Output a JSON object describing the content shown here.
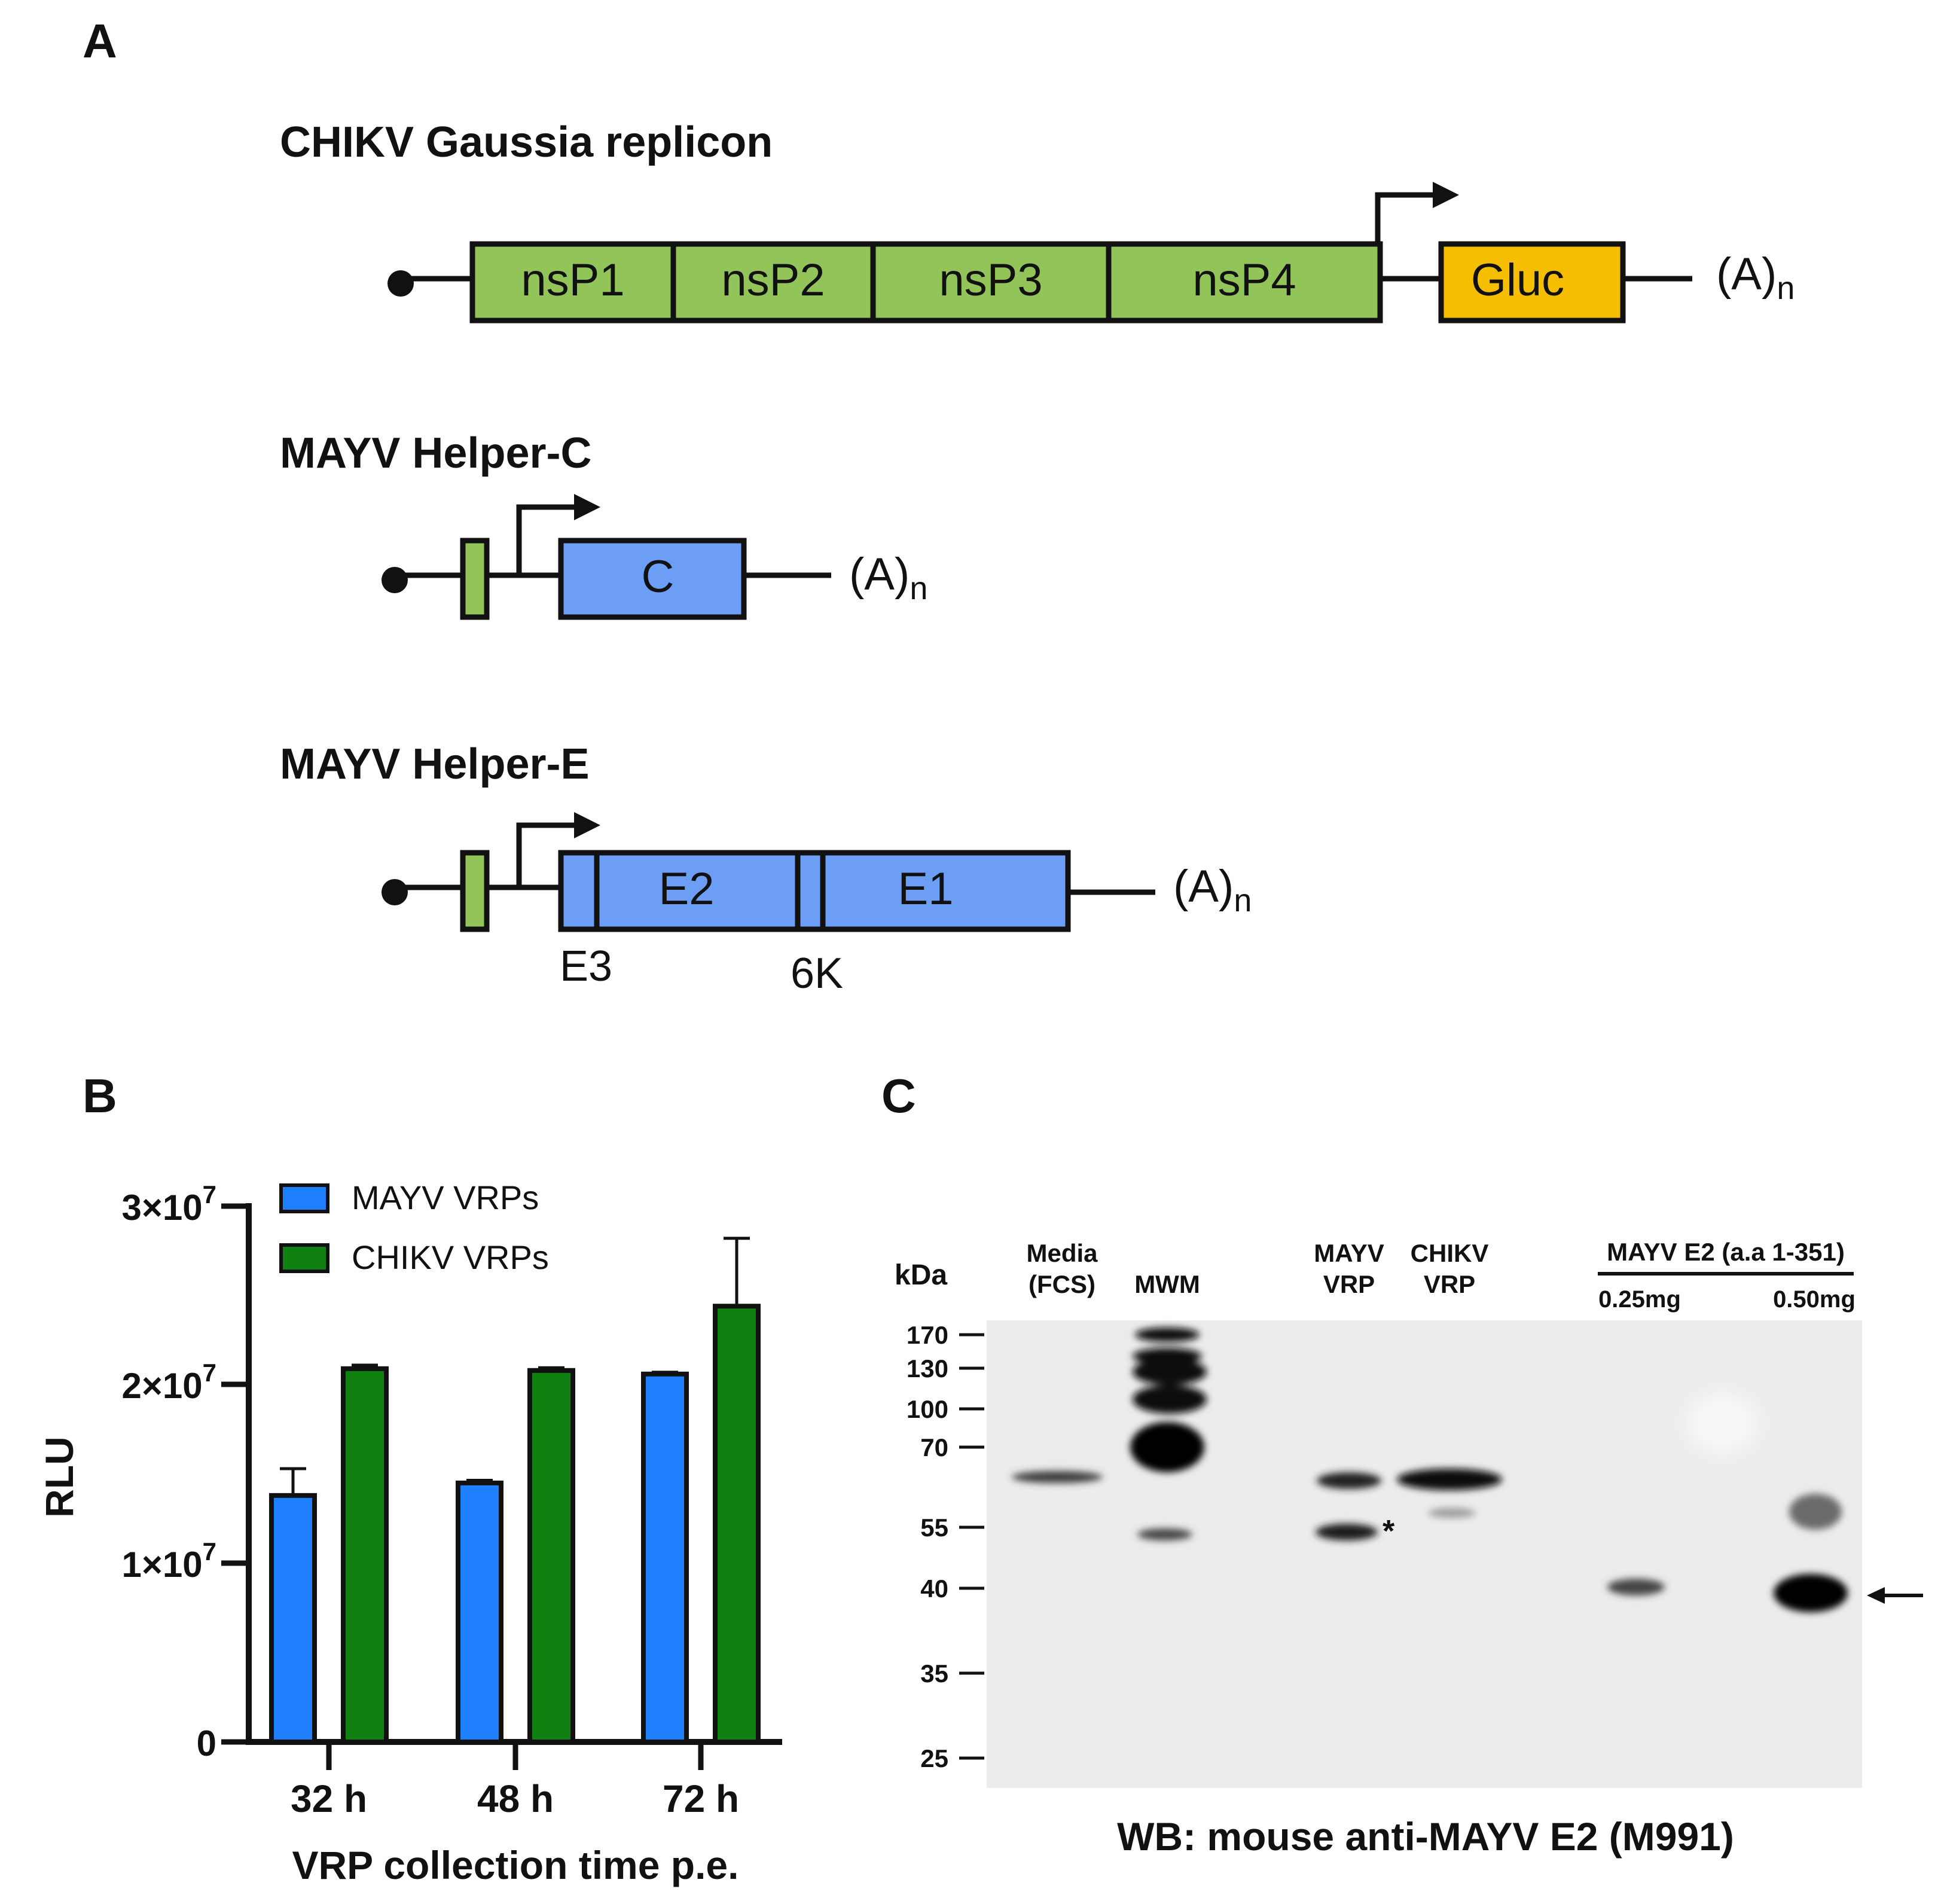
{
  "panel_a": {
    "label": "A",
    "constructs": [
      {
        "title": "CHIKV Gaussia replicon",
        "segments": [
          "nsP1",
          "nsP2",
          "nsP3",
          "nsP4"
        ],
        "reporter": "Gluc",
        "tail": "(A)",
        "tail_sub": "n"
      },
      {
        "title": "MAYV Helper-C",
        "segments": [
          "C"
        ],
        "tail": "(A)",
        "tail_sub": "n"
      },
      {
        "title": "MAYV Helper-E",
        "segments": [
          "E2",
          "E1"
        ],
        "sublabels": [
          "E3",
          "6K"
        ],
        "tail": "(A)",
        "tail_sub": "n"
      }
    ],
    "colors": {
      "replicon": "#92C45A",
      "reporter": "#F6BE00",
      "structural": "#6D9EF5",
      "outline": "#111111"
    }
  },
  "panel_b": {
    "label": "B"
  },
  "panel_c": {
    "label": "C",
    "kda_label": "kDa",
    "lane_labels": [
      [
        "Media",
        "(FCS)"
      ],
      [
        "MWM"
      ],
      [
        "MAYV",
        "VRP"
      ],
      [
        "CHIKV",
        "VRP"
      ]
    ],
    "e2_group_label": "MAYV E2 (a.a 1-351)",
    "e2_doses": [
      "0.25mg",
      "0.50mg"
    ],
    "markers": [
      "170",
      "130",
      "100",
      "70",
      "55",
      "40",
      "35",
      "25"
    ],
    "asterisk": "*",
    "caption": "WB: mouse anti-MAYV E2 (M991)"
  },
  "chart_data": {
    "type": "bar",
    "categories": [
      "32 h",
      "48 h",
      "72 h"
    ],
    "series": [
      {
        "name": "MAYV VRPs",
        "color": "#1E7FFF",
        "values": [
          13800000,
          14500000,
          20600000
        ],
        "errors": [
          1500000,
          150000,
          100000
        ]
      },
      {
        "name": "CHIKV VRPs",
        "color": "#108010",
        "values": [
          20900000,
          20800000,
          24400000
        ],
        "errors": [
          200000,
          150000,
          3800000
        ]
      }
    ],
    "xlabel": "VRP collection time p.e.",
    "ylabel": "RLU",
    "ylim": [
      0,
      30000000
    ],
    "yticks": [
      {
        "value": 0,
        "base": "0",
        "exp": ""
      },
      {
        "value": 10000000,
        "base": "1×10",
        "exp": "7"
      },
      {
        "value": 20000000,
        "base": "2×10",
        "exp": "7"
      },
      {
        "value": 30000000,
        "base": "3×10",
        "exp": "7"
      }
    ],
    "legend": "top-left",
    "grid": false
  }
}
